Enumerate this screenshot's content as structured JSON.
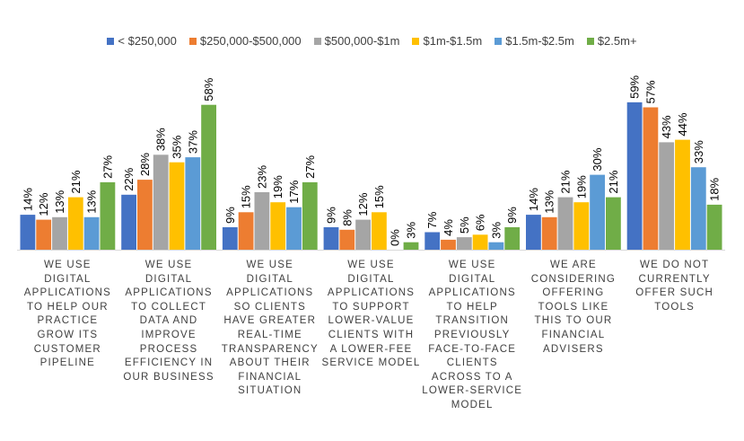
{
  "chart_data": {
    "type": "bar",
    "legend_position": "top",
    "grid": false,
    "ylim": [
      0,
      64
    ],
    "categories": [
      "WE USE DIGITAL APPLICATIONS TO HELP OUR PRACTICE GROW ITS CUSTOMER PIPELINE",
      "WE USE DIGITAL APPLICATIONS TO COLLECT DATA AND IMPROVE PROCESS EFFICIENCY IN OUR BUSINESS",
      "WE USE DIGITAL APPLICATIONS SO CLIENTS HAVE GREATER REAL-TIME TRANSPARENCY ABOUT THEIR FINANCIAL SITUATION",
      "WE USE DIGITAL APPLICATIONS TO SUPPORT LOWER-VALUE CLIENTS WITH A LOWER-FEE SERVICE MODEL",
      "WE USE DIGITAL APPLICATIONS TO HELP TRANSITION PREVIOUSLY FACE-TO-FACE CLIENTS ACROSS TO A LOWER-SERVICE MODEL",
      "WE ARE CONSIDERING OFFERING TOOLS LIKE THIS TO OUR FINANCIAL ADVISERS",
      "WE DO NOT CURRENTLY OFFER SUCH TOOLS"
    ],
    "category_lines": [
      [
        "WE USE",
        "DIGITAL",
        "APPLICATIONS",
        "TO HELP OUR",
        "PRACTICE",
        "GROW ITS",
        "CUSTOMER",
        "PIPELINE"
      ],
      [
        "WE USE",
        "DIGITAL",
        "APPLICATIONS",
        "TO COLLECT",
        "DATA AND",
        "IMPROVE",
        "PROCESS",
        "EFFICIENCY IN",
        "OUR BUSINESS"
      ],
      [
        "WE USE",
        "DIGITAL",
        "APPLICATIONS",
        "SO CLIENTS",
        "HAVE GREATER",
        "REAL-TIME",
        "TRANSPARENCY",
        "ABOUT THEIR",
        "FINANCIAL",
        "SITUATION"
      ],
      [
        "WE USE",
        "DIGITAL",
        "APPLICATIONS",
        "TO SUPPORT",
        "LOWER-VALUE",
        "CLIENTS WITH",
        "A LOWER-FEE",
        "SERVICE MODEL"
      ],
      [
        "WE USE",
        "DIGITAL",
        "APPLICATIONS",
        "TO HELP",
        "TRANSITION",
        "PREVIOUSLY",
        "FACE-TO-FACE",
        "CLIENTS",
        "ACROSS TO A",
        "LOWER-SERVICE",
        "MODEL"
      ],
      [
        "WE ARE",
        "CONSIDERING",
        "OFFERING",
        "TOOLS LIKE",
        "THIS TO OUR",
        "FINANCIAL",
        "ADVISERS"
      ],
      [
        "WE DO NOT",
        "CURRENTLY",
        "OFFER SUCH",
        "TOOLS"
      ]
    ],
    "series": [
      {
        "name": "< $250,000",
        "color": "#4472C4",
        "values": [
          14,
          22,
          9,
          9,
          7,
          14,
          59
        ]
      },
      {
        "name": "$250,000-$500,000",
        "color": "#ED7D31",
        "values": [
          12,
          28,
          15,
          8,
          4,
          13,
          57
        ]
      },
      {
        "name": "$500,000-$1m",
        "color": "#A5A5A5",
        "values": [
          13,
          38,
          23,
          12,
          5,
          21,
          43
        ]
      },
      {
        "name": "$1m-$1.5m",
        "color": "#FFC000",
        "values": [
          21,
          35,
          19,
          15,
          6,
          19,
          44
        ]
      },
      {
        "name": "$1.5m-$2.5m",
        "color": "#5B9BD5",
        "values": [
          13,
          37,
          17,
          0,
          3,
          30,
          33
        ]
      },
      {
        "name": "$2.5m+",
        "color": "#70AD47",
        "values": [
          27,
          58,
          27,
          3,
          9,
          21,
          18
        ]
      }
    ],
    "value_suffix": "%"
  }
}
